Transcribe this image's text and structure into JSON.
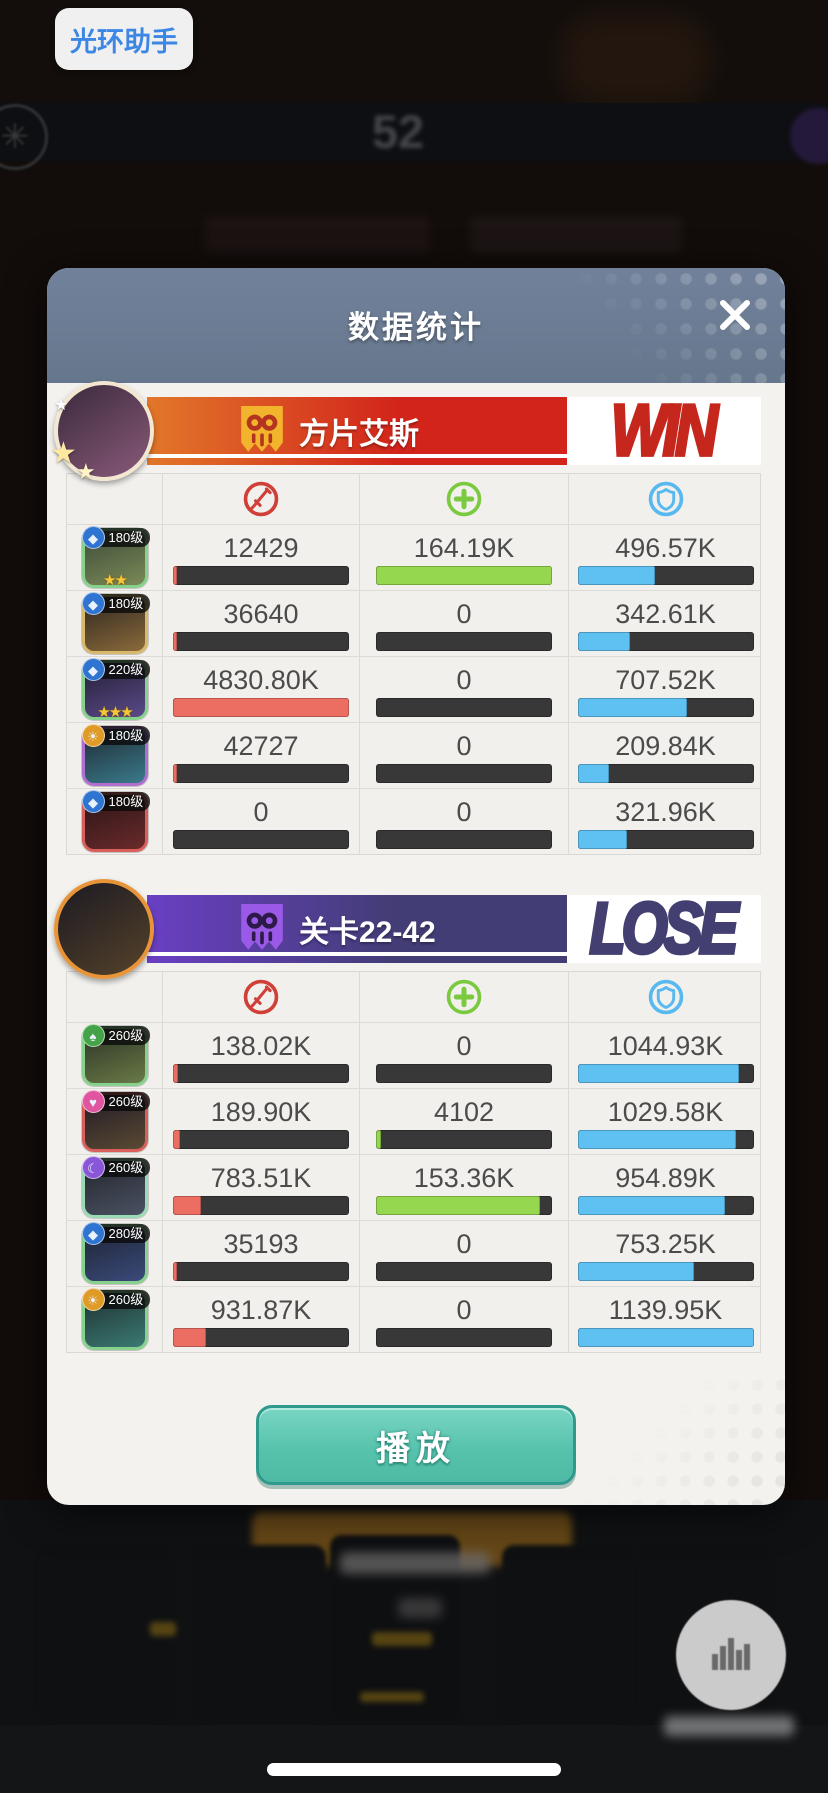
{
  "assistant_badge": {
    "label": "光环助手"
  },
  "background": {
    "top_bar_number": "52"
  },
  "modal": {
    "title": "数据统计",
    "stat_columns": [
      {
        "name": "damage",
        "color": "#cf4038"
      },
      {
        "name": "heal",
        "color": "#7bc93f"
      },
      {
        "name": "shield",
        "color": "#58b9f0"
      }
    ],
    "bar_colors": {
      "damage": "#ec6e62",
      "heal": "#95d84f",
      "shield": "#5fc1f2",
      "track": "#383838"
    },
    "play_button": {
      "label": "播放"
    },
    "teams": [
      {
        "name": "方片艾斯",
        "result": "WIN",
        "theme": "win",
        "banner": {
          "from": "#e2772a",
          "to": "#d2241b",
          "flag_bg": "#f2b42d",
          "flag_fg": "#b5341f",
          "result_color": "#c5271d",
          "avatar_border": "#f3e7d2",
          "avatar_art": [
            "#3a2a3c",
            "#8a5a7a"
          ]
        },
        "rows": [
          {
            "level": "180级",
            "class_glyph": "◆",
            "class_color": "#2f74d0",
            "frame": "#86d28c",
            "art": [
              "#3d4a3a",
              "#7a8a56"
            ],
            "stars": 2,
            "damage": {
              "value": "12429",
              "pct": 2
            },
            "heal": {
              "value": "164.19K",
              "pct": 100
            },
            "shield": {
              "value": "496.57K",
              "pct": 44
            }
          },
          {
            "level": "180级",
            "class_glyph": "◆",
            "class_color": "#2f74d0",
            "frame": "#d8b86a",
            "art": [
              "#2e2620",
              "#8a6a3a"
            ],
            "stars": 0,
            "damage": {
              "value": "36640",
              "pct": 2
            },
            "heal": {
              "value": "0",
              "pct": 0
            },
            "shield": {
              "value": "342.61K",
              "pct": 30
            }
          },
          {
            "level": "220级",
            "class_glyph": "◆",
            "class_color": "#2f74d0",
            "frame": "#86d28c",
            "art": [
              "#241f33",
              "#5a4a8a"
            ],
            "stars": 3,
            "damage": {
              "value": "4830.80K",
              "pct": 100
            },
            "heal": {
              "value": "0",
              "pct": 0
            },
            "shield": {
              "value": "707.52K",
              "pct": 62
            }
          },
          {
            "level": "180级",
            "class_glyph": "☀",
            "class_color": "#e09a26",
            "frame": "#b06fd0",
            "art": [
              "#1e2a33",
              "#3a7a8a"
            ],
            "stars": 0,
            "damage": {
              "value": "42727",
              "pct": 2
            },
            "heal": {
              "value": "0",
              "pct": 0
            },
            "shield": {
              "value": "209.84K",
              "pct": 18
            }
          },
          {
            "level": "180级",
            "class_glyph": "◆",
            "class_color": "#2f74d0",
            "frame": "#d95f5a",
            "art": [
              "#2a1518",
              "#6a2a2a"
            ],
            "stars": 0,
            "damage": {
              "value": "0",
              "pct": 0
            },
            "heal": {
              "value": "0",
              "pct": 0
            },
            "shield": {
              "value": "321.96K",
              "pct": 28
            }
          }
        ]
      },
      {
        "name": "关卡22-42",
        "result": "LOSE",
        "theme": "lose",
        "banner": {
          "from": "#6a3fc4",
          "to": "#423d74",
          "flag_bg": "#9b59e8",
          "flag_fg": "#2e1a4a",
          "result_color": "#434071",
          "avatar_border": "#e8953a",
          "avatar_art": [
            "#1c1a22",
            "#55422a"
          ]
        },
        "rows": [
          {
            "level": "260级",
            "class_glyph": "♠",
            "class_color": "#44a348",
            "frame": "#86d28c",
            "art": [
              "#2a3326",
              "#6a7a46"
            ],
            "stars": 0,
            "damage": {
              "value": "138.02K",
              "pct": 3
            },
            "heal": {
              "value": "0",
              "pct": 0
            },
            "shield": {
              "value": "1044.93K",
              "pct": 92
            }
          },
          {
            "level": "260级",
            "class_glyph": "♥",
            "class_color": "#e0559f",
            "frame": "#d95f5a",
            "art": [
              "#201a26",
              "#5a4a33"
            ],
            "stars": 0,
            "damage": {
              "value": "189.90K",
              "pct": 4
            },
            "heal": {
              "value": "4102",
              "pct": 3
            },
            "shield": {
              "value": "1029.58K",
              "pct": 90
            }
          },
          {
            "level": "260级",
            "class_glyph": "☾",
            "class_color": "#8a56d8",
            "frame": "#9adbb6",
            "art": [
              "#23262e",
              "#4a5161"
            ],
            "stars": 0,
            "damage": {
              "value": "783.51K",
              "pct": 16
            },
            "heal": {
              "value": "153.36K",
              "pct": 93
            },
            "shield": {
              "value": "954.89K",
              "pct": 84
            }
          },
          {
            "level": "280级",
            "class_glyph": "◆",
            "class_color": "#2f74d0",
            "frame": "#86d28c",
            "art": [
              "#1e2433",
              "#3a4a7a"
            ],
            "stars": 0,
            "damage": {
              "value": "35193",
              "pct": 2
            },
            "heal": {
              "value": "0",
              "pct": 0
            },
            "shield": {
              "value": "753.25K",
              "pct": 66
            }
          },
          {
            "level": "260级",
            "class_glyph": "☀",
            "class_color": "#e09a26",
            "frame": "#86d28c",
            "art": [
              "#203030",
              "#3a7a72"
            ],
            "stars": 0,
            "damage": {
              "value": "931.87K",
              "pct": 19
            },
            "heal": {
              "value": "0",
              "pct": 0
            },
            "shield": {
              "value": "1139.95K",
              "pct": 100
            }
          }
        ]
      }
    ]
  }
}
